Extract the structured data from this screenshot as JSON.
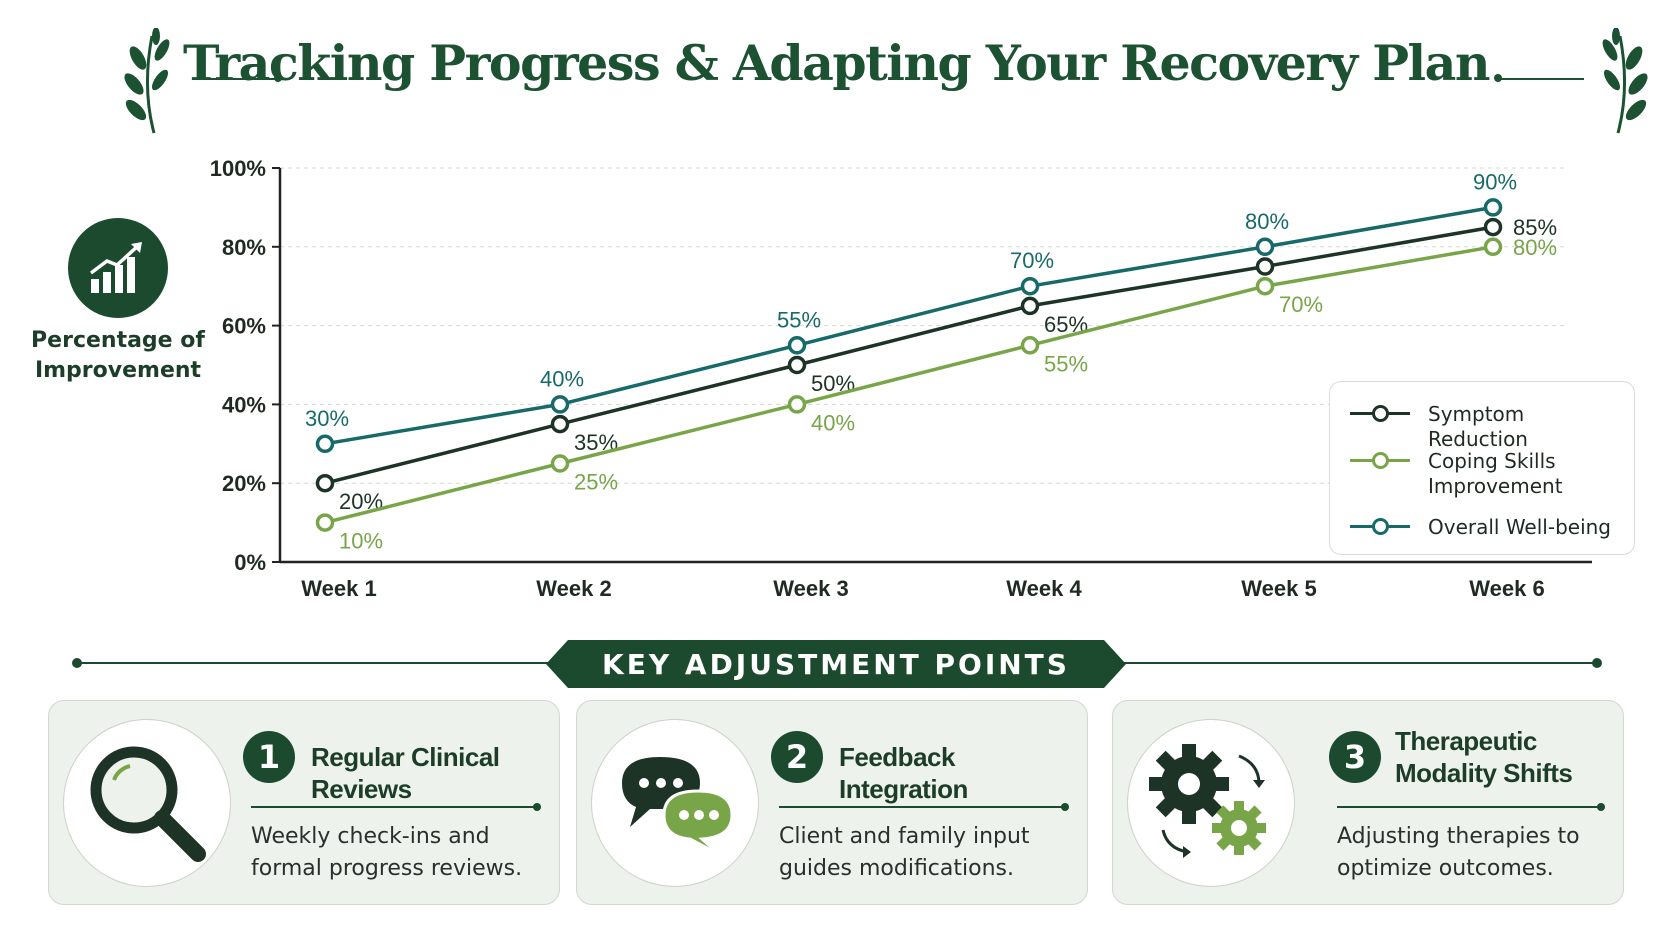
{
  "title": "Tracking Progress & Adapting Your Recovery Plan",
  "colors": {
    "dark_green": "#1c4a2e",
    "light_green": "#78a548",
    "teal": "#186a6a",
    "title_green": "#1c5132"
  },
  "y_axis_label": "Percentage of\nImprovement",
  "chart_data": {
    "type": "line",
    "categories": [
      "Week 1",
      "Week 2",
      "Week 3",
      "Week 4",
      "Week 5",
      "Week 6"
    ],
    "ylim": [
      0,
      100
    ],
    "y_ticks": [
      "0%",
      "20%",
      "40%",
      "60%",
      "80%",
      "100%"
    ],
    "grid": true,
    "legend_position": "right",
    "series": [
      {
        "name": "Overall Well-being",
        "color": "#186a6a",
        "values": [
          30,
          40,
          55,
          70,
          80,
          90
        ],
        "labels": [
          "30%",
          "40%",
          "55%",
          "70%",
          "80%",
          "90%"
        ],
        "label_pos": "above"
      },
      {
        "name": "Symptom Reduction",
        "color": "#1c3325",
        "values": [
          20,
          35,
          50,
          65,
          75,
          85
        ],
        "labels": [
          "20%",
          "35%",
          "50%",
          "65%",
          "",
          "85%"
        ],
        "label_pos": "below-right"
      },
      {
        "name": "Coping Skills Improvement",
        "color": "#78a548",
        "values": [
          10,
          25,
          40,
          55,
          70,
          80
        ],
        "labels": [
          "10%",
          "25%",
          "40%",
          "55%",
          "70%",
          "80%"
        ],
        "label_pos": "below-right"
      }
    ]
  },
  "legend": {
    "items": [
      {
        "label": "Symptom Reduction",
        "color": "#1c3325"
      },
      {
        "label": "Coping Skills Improvement",
        "color": "#78a548"
      },
      {
        "label": "Overall Well-being",
        "color": "#186a6a"
      }
    ]
  },
  "section_title": "KEY ADJUSTMENT POINTS",
  "cards": [
    {
      "number": "1",
      "title": "Regular Clinical Reviews",
      "description": "Weekly check-ins and formal progress reviews.",
      "icon": "magnifier-icon"
    },
    {
      "number": "2",
      "title": "Feedback Integration",
      "description": "Client and family input guides modifications.",
      "icon": "chat-bubbles-icon"
    },
    {
      "number": "3",
      "title": "Therapeutic\nModality Shifts",
      "description": "Adjusting therapies to optimize outcomes.",
      "icon": "gears-icon"
    }
  ]
}
